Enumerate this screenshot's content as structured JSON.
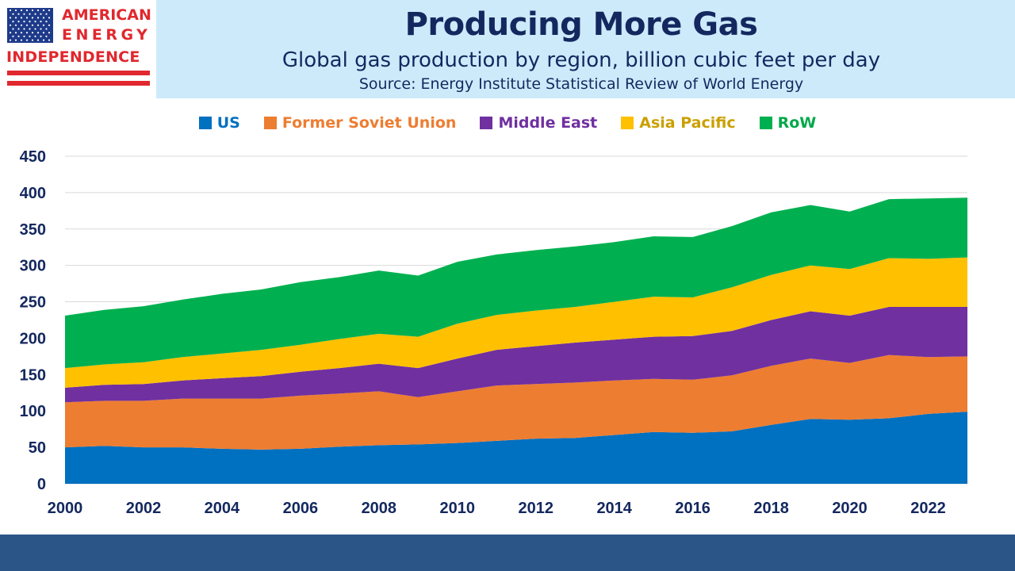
{
  "logo": {
    "line1": "AMERICAN",
    "line2": "ENERGY",
    "line3": "INDEPENDENCE"
  },
  "colors": {
    "header_bg": "#cdeafb",
    "title": "#14285f",
    "logo_red": "#e0282e",
    "logo_blue": "#1e3a8a",
    "footer": "#2b5587",
    "gridline": "#d9d9d9"
  },
  "chart_data": {
    "type": "area",
    "stacked": true,
    "title": "Producing More Gas",
    "subtitle": "Global gas production by region, billion cubic feet per day",
    "source": "Source: Energy Institute Statistical Review of World Energy",
    "xlabel": "",
    "ylabel": "",
    "ylim": [
      0,
      450
    ],
    "yticks": [
      0,
      50,
      100,
      150,
      200,
      250,
      300,
      350,
      400,
      450
    ],
    "xticks": [
      2000,
      2002,
      2004,
      2006,
      2008,
      2010,
      2012,
      2014,
      2016,
      2018,
      2020,
      2022
    ],
    "grid": true,
    "legend_position": "top",
    "x": [
      2000,
      2001,
      2002,
      2003,
      2004,
      2005,
      2006,
      2007,
      2008,
      2009,
      2010,
      2011,
      2012,
      2013,
      2014,
      2015,
      2016,
      2017,
      2018,
      2019,
      2020,
      2021,
      2022,
      2023
    ],
    "series": [
      {
        "name": "US",
        "color": "#0070c0",
        "values": [
          50,
          52,
          50,
          50,
          48,
          47,
          48,
          51,
          53,
          54,
          56,
          59,
          62,
          63,
          67,
          71,
          70,
          72,
          81,
          89,
          88,
          90,
          96,
          99
        ]
      },
      {
        "name": "Former Soviet Union",
        "color": "#ed7d31",
        "values": [
          62,
          62,
          64,
          67,
          69,
          70,
          73,
          73,
          74,
          65,
          71,
          76,
          75,
          76,
          75,
          73,
          73,
          77,
          81,
          83,
          78,
          87,
          78,
          76
        ]
      },
      {
        "name": "Middle East",
        "color": "#7030a0",
        "values": [
          20,
          22,
          23,
          25,
          28,
          31,
          33,
          35,
          38,
          40,
          45,
          49,
          52,
          55,
          56,
          58,
          60,
          61,
          63,
          65,
          65,
          66,
          69,
          68
        ]
      },
      {
        "name": "Asia Pacific",
        "color": "#ffc000",
        "values": [
          27,
          28,
          30,
          32,
          34,
          36,
          37,
          40,
          41,
          43,
          48,
          48,
          49,
          49,
          52,
          55,
          53,
          60,
          62,
          63,
          64,
          67,
          66,
          68
        ]
      },
      {
        "name": "RoW",
        "color": "#00b050",
        "values": [
          72,
          75,
          77,
          79,
          82,
          83,
          86,
          85,
          87,
          84,
          85,
          83,
          83,
          83,
          82,
          83,
          83,
          84,
          86,
          83,
          79,
          81,
          83,
          82
        ]
      }
    ]
  }
}
